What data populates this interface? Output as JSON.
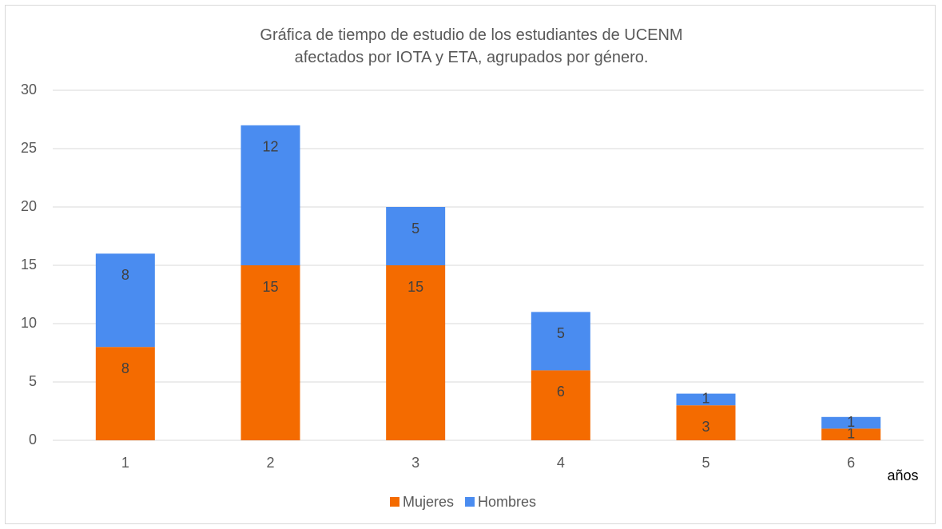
{
  "chart_data": {
    "type": "stacked_bar",
    "title": "Gráfica de tiempo de estudio de los estudiantes de UCENM afectados por IOTA y ETA, agrupados por género.",
    "x_label": "años",
    "categories": [
      "1",
      "2",
      "3",
      "4",
      "5",
      "6"
    ],
    "series": [
      {
        "name": "Mujeres",
        "color": "#f46b00",
        "values": [
          8,
          15,
          15,
          6,
          3,
          1
        ]
      },
      {
        "name": "Hombres",
        "color": "#4a8cf0",
        "values": [
          8,
          12,
          5,
          5,
          1,
          1
        ]
      }
    ],
    "ylim": [
      0,
      30
    ],
    "yticks": [
      0,
      5,
      10,
      15,
      20,
      25,
      30
    ],
    "grid": true,
    "legend": "bottom"
  }
}
